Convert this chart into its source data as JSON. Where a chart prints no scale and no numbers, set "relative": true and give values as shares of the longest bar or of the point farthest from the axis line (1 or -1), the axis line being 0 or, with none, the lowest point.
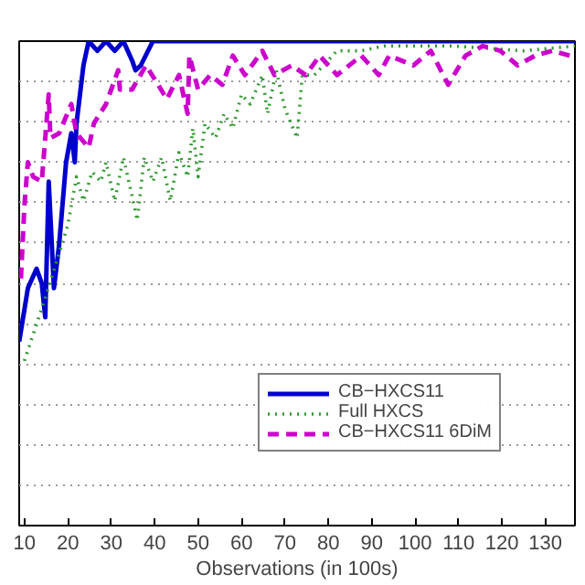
{
  "chart_data": {
    "type": "line",
    "relative": true,
    "xlabel": "Observations (in 100s)",
    "xlim": [
      8.8,
      136.8
    ],
    "xticks": [
      10,
      20,
      30,
      40,
      50,
      60,
      70,
      80,
      90,
      100,
      110,
      120,
      130
    ],
    "grid": "y",
    "legend": "bottom right",
    "tick_labels": "x",
    "series": [
      {
        "name": "CB−HXCS11",
        "color": "#0000cc",
        "line_style": "solid",
        "x": [
          8.8,
          10.8,
          12.8,
          14.0,
          14.8,
          15.6,
          16.8,
          18.0,
          19.6,
          20.8,
          21.6,
          22.0,
          23.6,
          24.8,
          26.8,
          28.8,
          30.8,
          32.8,
          34.8,
          35.6,
          36.8,
          39.6,
          136.8
        ],
        "values": [
          0.38,
          0.49,
          0.53,
          0.5,
          0.43,
          0.71,
          0.49,
          0.58,
          0.75,
          0.81,
          0.75,
          0.83,
          0.95,
          1.0,
          0.98,
          1.0,
          0.98,
          1.0,
          0.96,
          0.94,
          0.95,
          1.0,
          1.0
        ]
      },
      {
        "name": "Full HXCS",
        "color": "#339933",
        "line_style": "dotted",
        "x": [
          10.0,
          14.8,
          20.0,
          22.0,
          23.6,
          25.6,
          27.6,
          28.8,
          30.8,
          32.8,
          34.8,
          36.0,
          37.6,
          39.6,
          41.6,
          43.6,
          45.6,
          47.6,
          48.8,
          50.0,
          51.6,
          54.0,
          56.0,
          58.0,
          60.0,
          62.0,
          64.8,
          66.0,
          68.0,
          70.0,
          72.8,
          74.0,
          76.8,
          82.0,
          87.6,
          92.8,
          108.8,
          124.8,
          136.8
        ],
        "values": [
          0.34,
          0.47,
          0.62,
          0.72,
          0.67,
          0.73,
          0.71,
          0.75,
          0.67,
          0.76,
          0.68,
          0.63,
          0.76,
          0.71,
          0.76,
          0.67,
          0.77,
          0.72,
          0.82,
          0.72,
          0.83,
          0.8,
          0.85,
          0.82,
          0.89,
          0.87,
          0.93,
          0.85,
          0.94,
          0.86,
          0.8,
          0.93,
          0.93,
          0.98,
          0.98,
          0.99,
          0.99,
          0.98,
          0.99
        ]
      },
      {
        "name": "CB−HXCS11 6DiM",
        "color": "#cc00cc",
        "line_style": "dashed",
        "x": [
          9.2,
          10.0,
          10.8,
          12.0,
          14.0,
          15.6,
          16.0,
          18.0,
          20.8,
          22.0,
          24.8,
          26.0,
          28.8,
          31.6,
          32.0,
          34.8,
          38.0,
          40.8,
          42.8,
          45.6,
          47.6,
          48.0,
          50.0,
          52.8,
          55.6,
          58.0,
          60.8,
          64.8,
          67.6,
          71.6,
          74.8,
          78.0,
          82.0,
          87.6,
          91.6,
          94.0,
          99.6,
          103.6,
          107.6,
          111.6,
          115.6,
          119.6,
          123.6,
          127.6,
          131.6,
          135.6
        ],
        "values": [
          0.51,
          0.66,
          0.75,
          0.72,
          0.71,
          0.89,
          0.8,
          0.81,
          0.87,
          0.81,
          0.78,
          0.83,
          0.87,
          0.94,
          0.9,
          0.9,
          0.95,
          0.91,
          0.88,
          0.93,
          0.85,
          0.97,
          0.9,
          0.93,
          0.91,
          0.97,
          0.93,
          0.98,
          0.93,
          0.95,
          0.93,
          0.97,
          0.93,
          0.97,
          0.93,
          0.97,
          0.95,
          0.98,
          0.91,
          0.97,
          0.99,
          0.98,
          0.95,
          0.97,
          0.98,
          0.97
        ]
      }
    ]
  }
}
